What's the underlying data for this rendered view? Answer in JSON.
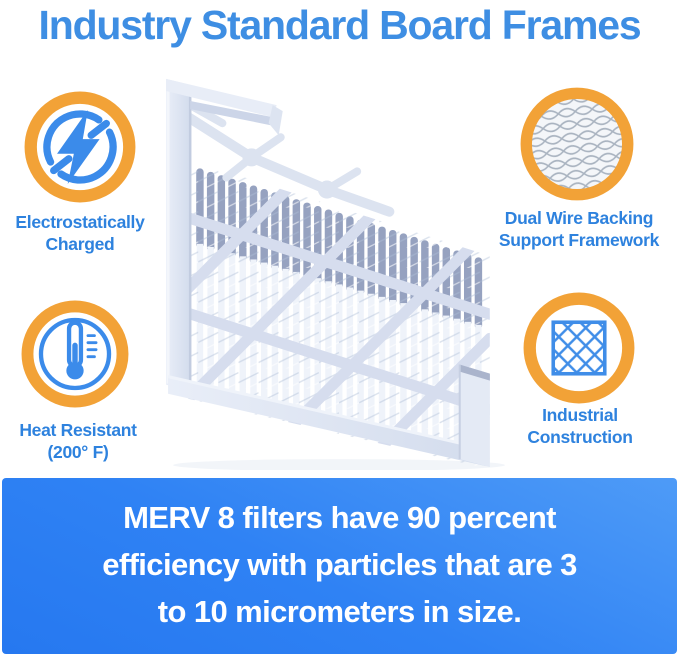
{
  "title": "Industry Standard Board Frames",
  "features": [
    {
      "id": "electrostatically-charged",
      "icon": "lightning-icon",
      "line1": "Electrostatically",
      "line2": "Charged"
    },
    {
      "id": "dual-wire-backing",
      "icon": "wire-mesh-icon",
      "line1": "Dual Wire Backing",
      "line2": "Support Framework"
    },
    {
      "id": "heat-resistant",
      "icon": "thermometer-icon",
      "line1": "Heat Resistant",
      "line2": "(200° F)"
    },
    {
      "id": "industrial-construction",
      "icon": "lattice-icon",
      "line1": "Industrial",
      "line2": "Construction"
    }
  ],
  "banner": {
    "line1": "MERV 8 filters have 90 percent",
    "line2": "efficiency with particles that are 3",
    "line3": "to 10 micrometers in size."
  },
  "colors": {
    "title_blue": "#3E8EE3",
    "label_blue": "#2E82DE",
    "ring_orange": "#F2A237",
    "icon_blue": "#3B8BEA",
    "banner_blue_top": "#4E9BF7",
    "banner_blue_bottom": "#2678F0",
    "banner_text": "#FFFFFF",
    "filter_frame": "#DDE4F1",
    "filter_pleat_dark": "#96A2C0",
    "background": "#FFFFFF"
  }
}
